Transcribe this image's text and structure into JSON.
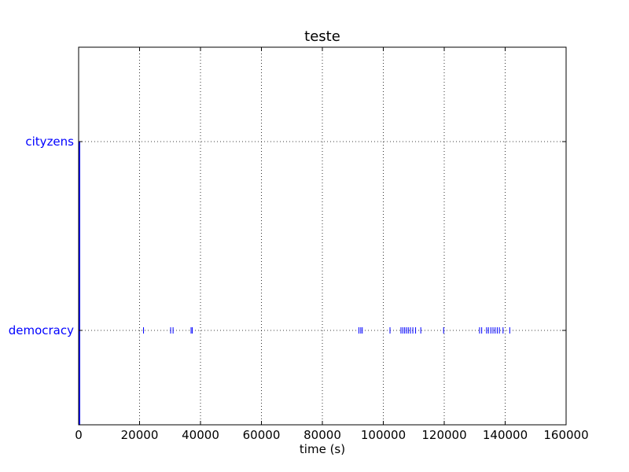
{
  "chart_data": {
    "type": "scatter",
    "title": "teste",
    "xlabel": "time (s)",
    "ylabel": "",
    "xlim": [
      0,
      160000
    ],
    "ylim": [
      0,
      2.0
    ],
    "xticks": [
      0,
      20000,
      40000,
      60000,
      80000,
      100000,
      120000,
      140000,
      160000
    ],
    "xtick_labels": [
      "0",
      "20000",
      "40000",
      "60000",
      "80000",
      "100000",
      "120000",
      "140000",
      "160000"
    ],
    "grid": true,
    "categories": [
      "democracy",
      "cityzens"
    ],
    "category_values": [
      0.5,
      1.5
    ],
    "marker_color": "#0000ff",
    "label_color": "#0000ff",
    "series": [
      {
        "name": "democracy",
        "y": 0.5,
        "x": [
          21300,
          30200,
          31000,
          36900,
          37300,
          92000,
          92600,
          93100,
          102200,
          105800,
          106400,
          107000,
          107600,
          108200,
          108900,
          109700,
          110600,
          112300,
          119800,
          131600,
          132300,
          133900,
          134500,
          135300,
          136000,
          136700,
          137400,
          138100,
          139300,
          141500
        ]
      },
      {
        "name": "cityzens",
        "y": 1.5,
        "x": []
      }
    ],
    "vertical_line_at_x": 0
  }
}
